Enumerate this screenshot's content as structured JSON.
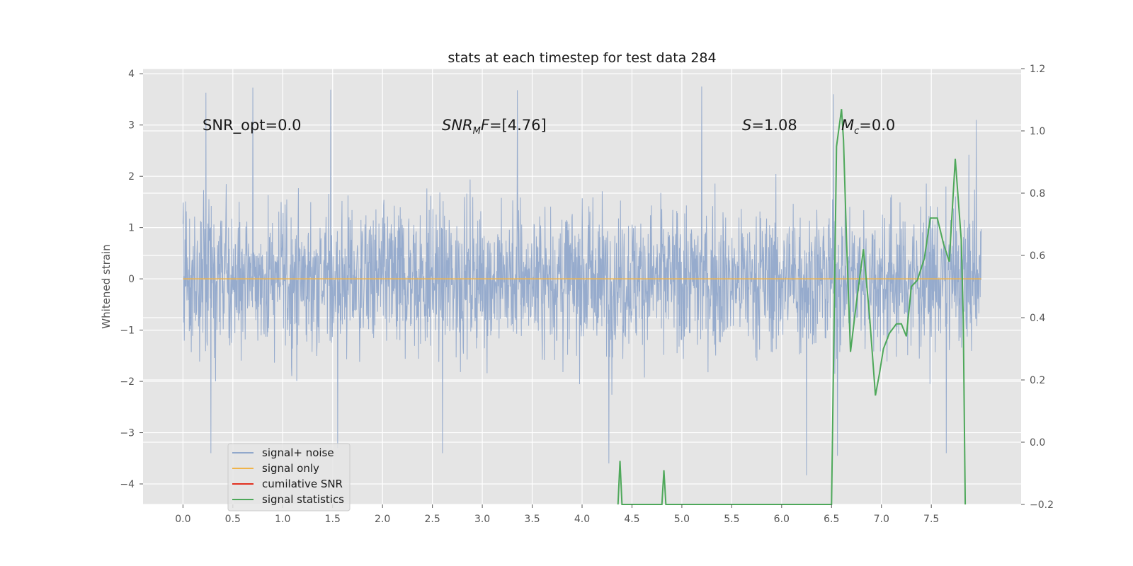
{
  "chart_data": {
    "type": "line",
    "title": "stats at each timestep for test data 284",
    "ylabel": "Whitened strain",
    "xlim": [
      -0.4,
      8.4
    ],
    "ylim": [
      -4.4,
      4.1
    ],
    "y2lim": [
      -0.2,
      1.2
    ],
    "x_ticks": [
      0.0,
      0.5,
      1.0,
      1.5,
      2.0,
      2.5,
      3.0,
      3.5,
      4.0,
      4.5,
      5.0,
      5.5,
      6.0,
      6.5,
      7.0,
      7.5
    ],
    "x_tick_labels": [
      "0.0",
      "0.5",
      "1.0",
      "1.5",
      "2.0",
      "2.5",
      "3.0",
      "3.5",
      "4.0",
      "4.5",
      "5.0",
      "5.5",
      "6.0",
      "6.5",
      "7.0",
      "7.5"
    ],
    "y_ticks": [
      4,
      3,
      2,
      1,
      0,
      -1,
      -2,
      -3,
      -4
    ],
    "y_tick_labels": [
      "4",
      "3",
      "2",
      "1",
      "0",
      "−1",
      "−2",
      "−3",
      "−4"
    ],
    "y2_ticks": [
      1.2,
      1.0,
      0.8,
      0.6,
      0.4,
      0.2,
      0.0,
      -0.2
    ],
    "y2_tick_labels": [
      "1.2",
      "1.0",
      "0.8",
      "0.6",
      "0.4",
      "0.2",
      "0.0",
      "−0.2"
    ],
    "grid": true,
    "legend_position": "lower-left",
    "annotations": {
      "snr_opt": "SNR_opt=0.0",
      "snr_mf_main": "SNR",
      "snr_mf_sub": "M",
      "snr_mf_rest": "F=[4.76]",
      "s_sym": "S",
      "s_val": "=1.08",
      "mc_main": "M",
      "mc_sub": "c",
      "mc_val": "=0.0"
    },
    "series": [
      {
        "name": "signal+ noise",
        "color": "#91a8cb",
        "axis": "left",
        "style": "dense-noise",
        "x_range": [
          0.0,
          8.0
        ],
        "typical_band": [
          -1.8,
          1.8
        ],
        "peaks": [
          {
            "x": 0.23,
            "y": 3.63
          },
          {
            "x": 0.7,
            "y": 3.73
          },
          {
            "x": 1.48,
            "y": 3.69
          },
          {
            "x": 3.35,
            "y": 3.68
          },
          {
            "x": 5.2,
            "y": 3.75
          },
          {
            "x": 6.52,
            "y": 3.6
          },
          {
            "x": 7.95,
            "y": 3.1
          }
        ],
        "troughs": [
          {
            "x": 0.28,
            "y": -3.4
          },
          {
            "x": 1.55,
            "y": -3.3
          },
          {
            "x": 2.6,
            "y": -3.4
          },
          {
            "x": 4.27,
            "y": -3.6
          },
          {
            "x": 6.25,
            "y": -3.83
          },
          {
            "x": 6.56,
            "y": -3.45
          },
          {
            "x": 7.65,
            "y": -3.4
          }
        ]
      },
      {
        "name": "signal only",
        "color": "#f0b44a",
        "axis": "left",
        "x": [
          0.0,
          8.0
        ],
        "y": [
          0.0,
          0.0
        ]
      },
      {
        "name": "cumilative SNR",
        "color": "#e2301f",
        "axis": "right",
        "x": [],
        "y": []
      },
      {
        "name": "signal statistics",
        "color": "#4ea85a",
        "axis": "right",
        "x": [
          4.36,
          4.38,
          4.4,
          4.8,
          4.82,
          4.84,
          6.5,
          6.55,
          6.6,
          6.62,
          6.65,
          6.69,
          6.75,
          6.82,
          6.88,
          6.94,
          6.98,
          7.02,
          7.08,
          7.15,
          7.2,
          7.25,
          7.3,
          7.36,
          7.43,
          7.49,
          7.56,
          7.62,
          7.68,
          7.74,
          7.8,
          7.82,
          7.84
        ],
        "y": [
          -0.2,
          -0.06,
          -0.2,
          -0.2,
          -0.09,
          -0.2,
          -0.2,
          0.95,
          1.07,
          0.97,
          0.65,
          0.29,
          0.45,
          0.62,
          0.41,
          0.15,
          0.22,
          0.3,
          0.35,
          0.38,
          0.38,
          0.34,
          0.5,
          0.52,
          0.59,
          0.72,
          0.72,
          0.64,
          0.58,
          0.91,
          0.65,
          0.4,
          -0.2
        ]
      }
    ]
  }
}
